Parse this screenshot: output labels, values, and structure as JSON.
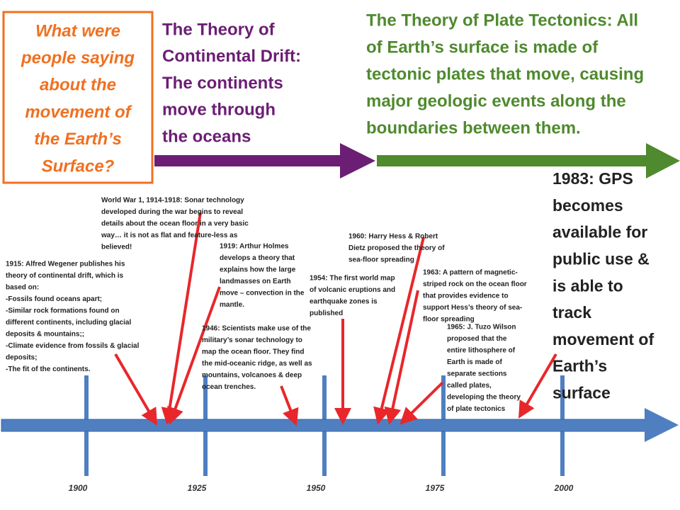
{
  "question": {
    "lines": [
      "What were",
      "people saying",
      "about the",
      "movement of",
      "the Earth’s",
      "Surface?"
    ]
  },
  "drift": {
    "lines": [
      "The Theory of",
      "Continental Drift:",
      "The continents",
      "move through",
      "the oceans"
    ]
  },
  "tectonics": {
    "lines": [
      "The Theory of Plate Tectonics:  All",
      "of Earth’s surface is made of",
      "tectonic plates that move, causing",
      "major geologic events along the",
      "boundaries between them."
    ]
  },
  "events": [
    {
      "lines": [
        "World War 1, 1914-1918: Sonar technology",
        "developed during the war begins to reveal",
        "details about the ocean floor in a very basic",
        "way…  it is not as flat and feature-less as",
        "believed!"
      ]
    },
    {
      "lines": [
        "1915: Alfred Wegener publishes his",
        "theory of continental drift, which is",
        "based on:",
        "-Fossils found oceans apart;",
        "-Similar rock formations found on",
        "different continents, including glacial",
        "deposits & mountains;;",
        "-Climate evidence from fossils & glacial",
        "deposits;",
        "-The fit of the continents."
      ]
    },
    {
      "lines": [
        "1919: Arthur Holmes",
        "develops a theory that",
        "explains how the large",
        "landmasses on Earth",
        "move – convection in the",
        "mantle."
      ]
    },
    {
      "lines": [
        "1946: Scientists make use of the",
        "military’s sonar technology to",
        "map the ocean floor.  They find",
        "the mid-oceanic ridge, as well as",
        "mountains, volcanoes & deep",
        "ocean trenches."
      ]
    },
    {
      "lines": [
        "1954: The first world map",
        "of volcanic eruptions and",
        "earthquake zones is",
        "published"
      ]
    },
    {
      "lines": [
        "1960: Harry Hess & Robert",
        "Dietz proposed the theory of",
        "sea-floor spreading"
      ]
    },
    {
      "lines": [
        "1963: A pattern of magnetic-",
        "striped rock on the ocean floor",
        "that provides evidence to",
        "support Hess’s theory of sea-",
        "floor spreading"
      ]
    },
    {
      "lines": [
        "1965: J. Tuzo Wilson",
        "proposed that the",
        "entire lithosphere of",
        "Earth is made of",
        "separate sections",
        "called plates,",
        "developing the theory",
        "of plate tectonics"
      ]
    },
    {
      "lines": [
        "1983: GPS",
        "becomes",
        "available for",
        "public use &",
        "is able to",
        "track",
        "movement of",
        "Earth’s",
        "surface"
      ]
    }
  ],
  "years": [
    "1900",
    "1925",
    "1950",
    "1975",
    "2000"
  ]
}
